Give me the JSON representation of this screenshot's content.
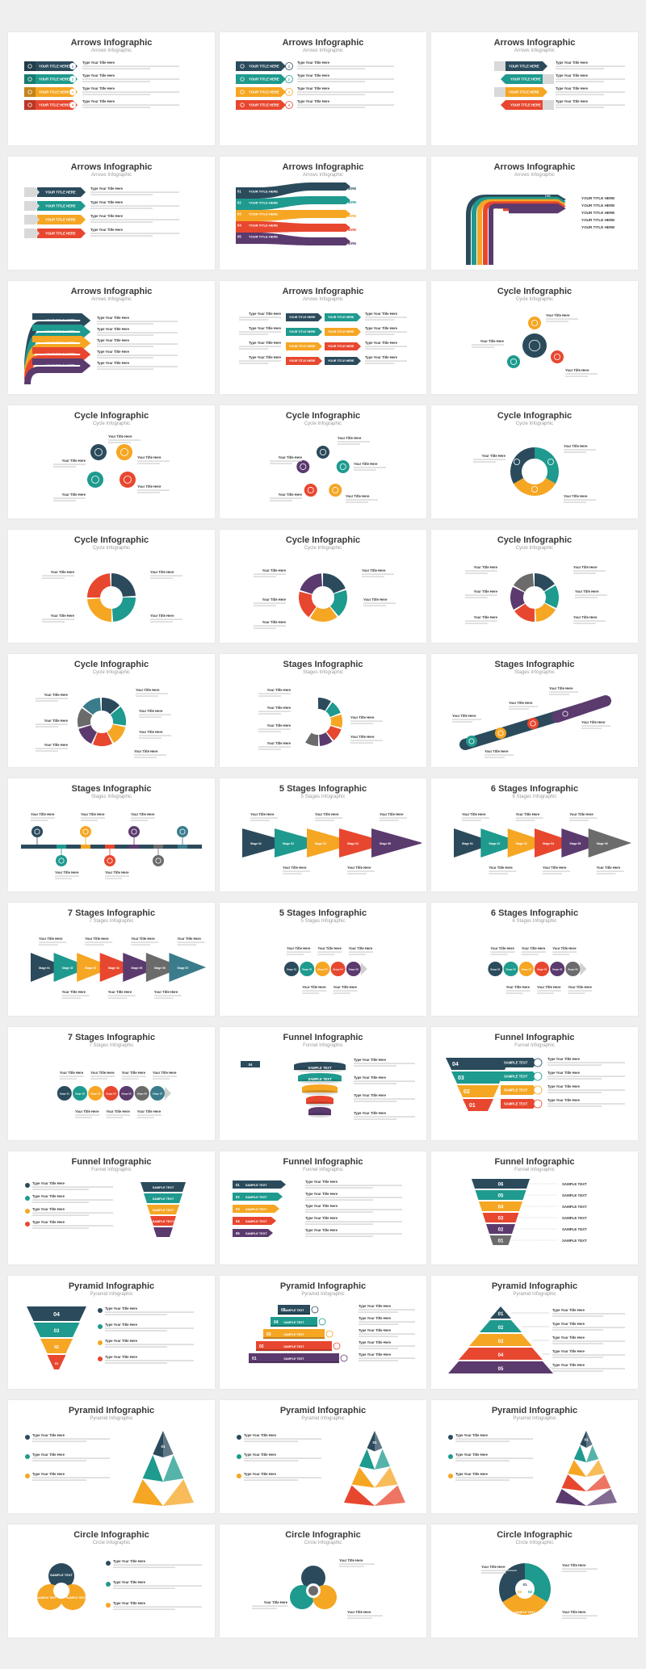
{
  "colors": {
    "navy": "#2b4b5c",
    "teal": "#1e9a8e",
    "orange": "#f5a623",
    "red": "#e8472f",
    "purple": "#5b3a6e",
    "gray": "#6b6b6b",
    "text": "#3a3a3a",
    "muted": "#9a9a9a"
  },
  "common": {
    "your_title_here_caps": "YOUR TITLE HERE",
    "type_your_title_here": "Type Your Title Here",
    "your_title_here": "Your Title Here",
    "sample_text": "SAMPLE TEXT"
  },
  "slides": [
    {
      "title": "Arrows Infographic",
      "subtitle": "Arrows Infographic",
      "kind": "arrows_left"
    },
    {
      "title": "Arrows Infographic",
      "subtitle": "Arrows Infographic",
      "kind": "arrows_left_num"
    },
    {
      "title": "Arrows Infographic",
      "subtitle": "Arrows Infographic",
      "kind": "arrows_zigzag"
    },
    {
      "title": "Arrows Infographic",
      "subtitle": "Arrows Infographic",
      "kind": "arrows_stack"
    },
    {
      "title": "Arrows Infographic",
      "subtitle": "Arrows Infographic",
      "kind": "arrows_flare"
    },
    {
      "title": "Arrows Infographic",
      "subtitle": "Arrows Infographic",
      "kind": "arrows_bend"
    },
    {
      "title": "Arrows Infographic",
      "subtitle": "Arrows Infographic",
      "kind": "arrows_curve"
    },
    {
      "title": "Arrows Infographic",
      "subtitle": "Arrows Infographic",
      "kind": "arrows_double"
    },
    {
      "title": "Cycle Infographic",
      "subtitle": "Cycle Infographic",
      "kind": "cycle3"
    },
    {
      "title": "Cycle Infographic",
      "subtitle": "Cycle Infographic",
      "kind": "cycle4"
    },
    {
      "title": "Cycle Infographic",
      "subtitle": "Cycle Infographic",
      "kind": "cycle5"
    },
    {
      "title": "Cycle Infographic",
      "subtitle": "Cycle Infographic",
      "kind": "ring3"
    },
    {
      "title": "Cycle Infographic",
      "subtitle": "Cycle Infographic",
      "kind": "ring4"
    },
    {
      "title": "Cycle Infographic",
      "subtitle": "Cycle Infographic",
      "kind": "ring5"
    },
    {
      "title": "Cycle Infographic",
      "subtitle": "Cycle Infographic",
      "kind": "ring6"
    },
    {
      "title": "Cycle Infographic",
      "subtitle": "Cycle Infographic",
      "kind": "ring7"
    },
    {
      "title": "Stages Infographic",
      "subtitle": "Stages Infographic",
      "kind": "stages_arc"
    },
    {
      "title": "Stages Infographic",
      "subtitle": "Stages Infographic",
      "kind": "stages_diag"
    },
    {
      "title": "Stages Infographic",
      "subtitle": "Stages Infographic",
      "kind": "timeline"
    },
    {
      "title": "5 Stages Infographic",
      "subtitle": "5 Stages Infographic",
      "kind": "tri5"
    },
    {
      "title": "6 Stages Infographic",
      "subtitle": "6 Stages Infographic",
      "kind": "tri6"
    },
    {
      "title": "7 Stages Infographic",
      "subtitle": "7 Stages Infographic",
      "kind": "tri7"
    },
    {
      "title": "5 Stages Infographic",
      "subtitle": "5 Stages Infographic",
      "kind": "circ5"
    },
    {
      "title": "6 Stages Infographic",
      "subtitle": "6 Stages Infographic",
      "kind": "circ6"
    },
    {
      "title": "7 Stages Infographic",
      "subtitle": "7 Stages Infographic",
      "kind": "circ7"
    },
    {
      "title": "Funnel Infographic",
      "subtitle": "Funnel Infographic",
      "kind": "funnel_cyl"
    },
    {
      "title": "Funnel Infographic",
      "subtitle": "Funnel Infographic",
      "kind": "funnel_tri"
    },
    {
      "title": "Funnel Infographic",
      "subtitle": "Funnel Infographic",
      "kind": "funnel_right"
    },
    {
      "title": "Funnel Infographic",
      "subtitle": "Funnel Infographic",
      "kind": "funnel_tags"
    },
    {
      "title": "Funnel Infographic",
      "subtitle": "Funnel Infographic",
      "kind": "funnel_num"
    },
    {
      "title": "Pyramid Infographic",
      "subtitle": "Pyramid Infographic",
      "kind": "pyr_inv"
    },
    {
      "title": "Pyramid Infographic",
      "subtitle": "Pyramid Infographic",
      "kind": "pyr_steps"
    },
    {
      "title": "Pyramid Infographic",
      "subtitle": "Pyramid Infographic",
      "kind": "pyr_tri"
    },
    {
      "title": "Pyramid Infographic",
      "subtitle": "Pyramid Infographic",
      "kind": "pyr3d_3"
    },
    {
      "title": "Pyramid Infographic",
      "subtitle": "Pyramid Infographic",
      "kind": "pyr3d_4"
    },
    {
      "title": "Pyramid Infographic",
      "subtitle": "Pyramid Infographic",
      "kind": "pyr3d_5"
    },
    {
      "title": "Circle Infographic",
      "subtitle": "Circle Infographic",
      "kind": "circle_a"
    },
    {
      "title": "Circle Infographic",
      "subtitle": "Circle Infographic",
      "kind": "circle_b"
    },
    {
      "title": "Circle Infographic",
      "subtitle": "Circle Infographic",
      "kind": "circle_c"
    }
  ]
}
